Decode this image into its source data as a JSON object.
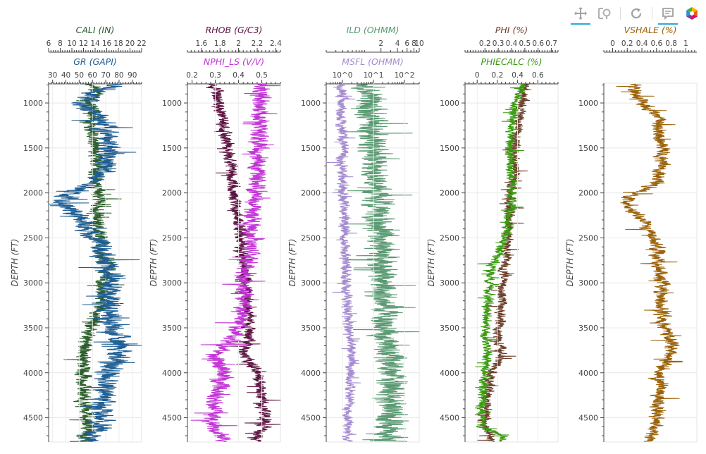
{
  "toolbar": {
    "tools": [
      {
        "name": "pan-tool",
        "active": true
      },
      {
        "name": "box-zoom-tool",
        "active": false
      },
      {
        "name": "reset-tool",
        "active": false
      },
      {
        "name": "hover-tool",
        "active": true
      },
      {
        "name": "bokeh-logo",
        "active": false
      }
    ]
  },
  "colors": {
    "CALI": "#2c5e2c",
    "GR": "#1f5e93",
    "RHOB": "#5c1340",
    "NPHI_LS": "#c234d6",
    "ILD": "#5a9a72",
    "MSFL": "#a58bd0",
    "PHI": "#6b3f2a",
    "PHIECALC": "#3a9a10",
    "VSHALE": "#9a6108"
  },
  "chart_data": [
    {
      "type": "line",
      "ylabel": "DEPTH (FT)",
      "ylim": [
        780,
        4770
      ],
      "yticks": [
        1000,
        1500,
        2000,
        2500,
        3000,
        3500,
        4000,
        4500
      ],
      "grid": true,
      "series": [
        {
          "name": "CALI (IN)",
          "axis": "top",
          "xlim": [
            6,
            22
          ],
          "ticks": [
            {
              "v": 6,
              "label": "6"
            },
            {
              "v": 8,
              "label": "8"
            },
            {
              "v": 10,
              "label": "10"
            },
            {
              "v": 12,
              "label": "12"
            },
            {
              "v": 14,
              "label": "14"
            },
            {
              "v": 16,
              "label": "16"
            },
            {
              "v": 18,
              "label": "18"
            },
            {
              "v": 20,
              "label": "20"
            },
            {
              "v": 22,
              "label": "22"
            }
          ],
          "baseline": [
            [
              800,
              13.5
            ],
            [
              900,
              15
            ],
            [
              1000,
              12.5
            ],
            [
              1100,
              13.5
            ],
            [
              1300,
              13
            ],
            [
              1500,
              14
            ],
            [
              1700,
              14.5
            ],
            [
              1900,
              14
            ],
            [
              2100,
              15
            ],
            [
              2300,
              14
            ],
            [
              2500,
              15
            ],
            [
              2700,
              14.5
            ],
            [
              2800,
              17
            ],
            [
              3000,
              15
            ],
            [
              3200,
              15.5
            ],
            [
              3500,
              13
            ],
            [
              3800,
              12
            ],
            [
              4000,
              12
            ],
            [
              4300,
              12
            ],
            [
              4500,
              12.5
            ],
            [
              4700,
              12.5
            ]
          ],
          "amp": 1.2,
          "seed": 11
        },
        {
          "name": "GR (GAPI)",
          "axis": "bottom",
          "xlim": [
            27,
            97
          ],
          "ticks": [
            {
              "v": 30,
              "label": "30"
            },
            {
              "v": 40,
              "label": "40"
            },
            {
              "v": 50,
              "label": "50"
            },
            {
              "v": 60,
              "label": "60"
            },
            {
              "v": 70,
              "label": "70"
            },
            {
              "v": 80,
              "label": "80"
            },
            {
              "v": 90,
              "label": "90"
            }
          ],
          "baseline": [
            [
              800,
              80
            ],
            [
              900,
              60
            ],
            [
              1000,
              55
            ],
            [
              1200,
              68
            ],
            [
              1500,
              72
            ],
            [
              1700,
              70
            ],
            [
              1900,
              60
            ],
            [
              2000,
              45
            ],
            [
              2100,
              38
            ],
            [
              2300,
              52
            ],
            [
              2500,
              60
            ],
            [
              2600,
              68
            ],
            [
              2800,
              70
            ],
            [
              3000,
              74
            ],
            [
              3200,
              72
            ],
            [
              3500,
              75
            ],
            [
              3700,
              82
            ],
            [
              3800,
              80
            ],
            [
              4000,
              72
            ],
            [
              4200,
              70
            ],
            [
              4400,
              68
            ],
            [
              4600,
              66
            ],
            [
              4700,
              60
            ]
          ],
          "amp": 8,
          "seed": 23
        }
      ]
    },
    {
      "type": "line",
      "ylabel": "DEPTH (FT)",
      "ylim": [
        780,
        4770
      ],
      "yticks": [
        1000,
        1500,
        2000,
        2500,
        3000,
        3500,
        4000,
        4500
      ],
      "grid": true,
      "series": [
        {
          "name": "RHOB (G/C3)",
          "axis": "top",
          "xlim": [
            1.45,
            2.45
          ],
          "ticks": [
            {
              "v": 1.6,
              "label": "1.6"
            },
            {
              "v": 1.8,
              "label": "1.8"
            },
            {
              "v": 2,
              "label": "2"
            },
            {
              "v": 2.2,
              "label": "2.2"
            },
            {
              "v": 2.4,
              "label": "2.4"
            }
          ],
          "baseline": [
            [
              800,
              1.75
            ],
            [
              1000,
              1.78
            ],
            [
              1300,
              1.85
            ],
            [
              1500,
              1.88
            ],
            [
              1800,
              1.92
            ],
            [
              2000,
              1.95
            ],
            [
              2300,
              2.0
            ],
            [
              2500,
              2.02
            ],
            [
              2800,
              2.05
            ],
            [
              3000,
              2.08
            ],
            [
              3300,
              2.1
            ],
            [
              3600,
              2.12
            ],
            [
              3800,
              2.05
            ],
            [
              4000,
              2.2
            ],
            [
              4300,
              2.25
            ],
            [
              4600,
              2.28
            ],
            [
              4700,
              2.2
            ]
          ],
          "amp": 0.06,
          "seed": 37
        },
        {
          "name": "NPHI_LS (V/V)",
          "axis": "bottom",
          "xlim": [
            0.18,
            0.58
          ],
          "ticks": [
            {
              "v": 0.2,
              "label": "0.2"
            },
            {
              "v": 0.3,
              "label": "0.3"
            },
            {
              "v": 0.4,
              "label": "0.4"
            },
            {
              "v": 0.5,
              "label": "0.5"
            }
          ],
          "baseline": [
            [
              800,
              0.5
            ],
            [
              1000,
              0.5
            ],
            [
              1300,
              0.49
            ],
            [
              1500,
              0.48
            ],
            [
              1800,
              0.48
            ],
            [
              2000,
              0.47
            ],
            [
              2300,
              0.46
            ],
            [
              2500,
              0.45
            ],
            [
              2800,
              0.44
            ],
            [
              3000,
              0.42
            ],
            [
              3300,
              0.42
            ],
            [
              3600,
              0.38
            ],
            [
              3800,
              0.3
            ],
            [
              4000,
              0.34
            ],
            [
              4300,
              0.3
            ],
            [
              4600,
              0.28
            ],
            [
              4700,
              0.33
            ]
          ],
          "amp": 0.035,
          "seed": 41
        }
      ]
    },
    {
      "type": "line",
      "ylabel": "DEPTH (FT)",
      "ylim": [
        780,
        4770
      ],
      "yticks": [
        1000,
        1500,
        2000,
        2500,
        3000,
        3500,
        4000,
        4500
      ],
      "grid": true,
      "series": [
        {
          "name": "ILD (OHMM)",
          "axis": "top",
          "scale": "log",
          "xlim": [
            0.2,
            10
          ],
          "ticks": [
            {
              "v": 2,
              "label": "2"
            },
            {
              "v": 4,
              "label": "4"
            },
            {
              "v": 6,
              "label": "6"
            },
            {
              "v": 8,
              "label": "8"
            },
            {
              "v": 10,
              "label": "10"
            }
          ],
          "minor": [
            0.2,
            0.3,
            0.4,
            0.5,
            0.6,
            0.7,
            0.8,
            0.9,
            1,
            3,
            5,
            7,
            9
          ],
          "baseline": [
            [
              800,
              1.2
            ],
            [
              1000,
              1.3
            ],
            [
              1500,
              1.5
            ],
            [
              2000,
              1.6
            ],
            [
              2300,
              1.8
            ],
            [
              2600,
              2.0
            ],
            [
              2900,
              2.2
            ],
            [
              3200,
              2.6
            ],
            [
              3500,
              2.4
            ],
            [
              3800,
              3.0
            ],
            [
              4000,
              3.2
            ],
            [
              4300,
              2.8
            ],
            [
              4700,
              3.0
            ]
          ],
          "amp": 0.25,
          "logspace": true,
          "seed": 53
        },
        {
          "name": "MSFL (OHMM)",
          "axis": "bottom",
          "scale": "log",
          "xlim": [
            0.3,
            300
          ],
          "ticks": [
            {
              "v": 1,
              "label": "10^0"
            },
            {
              "v": 10,
              "label": "10^1"
            },
            {
              "v": 100,
              "label": "10^2"
            }
          ],
          "minor": [
            0.3,
            0.4,
            0.5,
            0.6,
            0.7,
            0.8,
            0.9,
            2,
            3,
            4,
            5,
            6,
            7,
            8,
            9,
            20,
            30,
            40,
            50,
            60,
            70,
            80,
            90,
            200,
            300
          ],
          "baseline": [
            [
              800,
              1.0
            ],
            [
              1000,
              0.9
            ],
            [
              1500,
              1.0
            ],
            [
              2000,
              1.1
            ],
            [
              2500,
              1.2
            ],
            [
              3000,
              1.3
            ],
            [
              3500,
              1.5
            ],
            [
              3800,
              2.2
            ],
            [
              4000,
              1.8
            ],
            [
              4400,
              1.6
            ],
            [
              4700,
              1.5
            ]
          ],
          "amp": 0.15,
          "logspace": true,
          "seed": 67
        }
      ]
    },
    {
      "type": "line",
      "ylabel": "DEPTH (FT)",
      "ylim": [
        780,
        4770
      ],
      "yticks": [
        1000,
        1500,
        2000,
        2500,
        3000,
        3500,
        4000,
        4500
      ],
      "grid": true,
      "series": [
        {
          "name": "PHI (%)",
          "axis": "top",
          "xlim": [
            0.05,
            0.75
          ],
          "ticks": [
            {
              "v": 0.2,
              "label": "0.2"
            },
            {
              "v": 0.3,
              "label": "0.3"
            },
            {
              "v": 0.4,
              "label": "0.4"
            },
            {
              "v": 0.5,
              "label": "0.5"
            },
            {
              "v": 0.6,
              "label": "0.6"
            },
            {
              "v": 0.7,
              "label": "0.7"
            }
          ],
          "baseline": [
            [
              800,
              0.5
            ],
            [
              1000,
              0.48
            ],
            [
              1300,
              0.44
            ],
            [
              1500,
              0.42
            ],
            [
              1800,
              0.42
            ],
            [
              2000,
              0.4
            ],
            [
              2300,
              0.38
            ],
            [
              2500,
              0.37
            ],
            [
              2800,
              0.35
            ],
            [
              3000,
              0.33
            ],
            [
              3300,
              0.32
            ],
            [
              3600,
              0.3
            ],
            [
              3800,
              0.33
            ],
            [
              4000,
              0.25
            ],
            [
              4300,
              0.22
            ],
            [
              4600,
              0.2
            ],
            [
              4700,
              0.25
            ]
          ],
          "amp": 0.035,
          "seed": 71
        },
        {
          "name": "PHIECALC (%)",
          "axis": "bottom",
          "xlim": [
            -0.12,
            0.8
          ],
          "ticks": [
            {
              "v": 0,
              "label": "0"
            },
            {
              "v": 0.2,
              "label": "0.2"
            },
            {
              "v": 0.4,
              "label": "0.4"
            },
            {
              "v": 0.6,
              "label": "0.6"
            }
          ],
          "baseline": [
            [
              800,
              0.45
            ],
            [
              1000,
              0.38
            ],
            [
              1300,
              0.34
            ],
            [
              1500,
              0.32
            ],
            [
              1800,
              0.33
            ],
            [
              2000,
              0.35
            ],
            [
              2300,
              0.32
            ],
            [
              2500,
              0.28
            ],
            [
              2800,
              0.15
            ],
            [
              3000,
              0.12
            ],
            [
              3300,
              0.1
            ],
            [
              3600,
              0.08
            ],
            [
              3800,
              0.1
            ],
            [
              4000,
              0.08
            ],
            [
              4300,
              0.05
            ],
            [
              4600,
              0.04
            ],
            [
              4700,
              0.25
            ]
          ],
          "amp": 0.045,
          "seed": 83
        }
      ]
    },
    {
      "type": "line",
      "ylabel": "DEPTH (FT)",
      "ylim": [
        780,
        4770
      ],
      "yticks": [
        1000,
        1500,
        2000,
        2500,
        3000,
        3500,
        4000,
        4500
      ],
      "grid": true,
      "series": [
        {
          "name": "VSHALE (%)",
          "axis": "top",
          "xlim": [
            -0.12,
            1.15
          ],
          "ticks": [
            {
              "v": 0,
              "label": "0"
            },
            {
              "v": 0.2,
              "label": "0.2"
            },
            {
              "v": 0.4,
              "label": "0.4"
            },
            {
              "v": 0.6,
              "label": "0.6"
            },
            {
              "v": 0.8,
              "label": "0.8"
            },
            {
              "v": 1,
              "label": "1"
            }
          ],
          "baseline": [
            [
              800,
              0.35
            ],
            [
              900,
              0.3
            ],
            [
              1000,
              0.42
            ],
            [
              1200,
              0.62
            ],
            [
              1500,
              0.68
            ],
            [
              1700,
              0.66
            ],
            [
              1900,
              0.6
            ],
            [
              2000,
              0.3
            ],
            [
              2100,
              0.15
            ],
            [
              2300,
              0.4
            ],
            [
              2500,
              0.55
            ],
            [
              2600,
              0.62
            ],
            [
              2800,
              0.6
            ],
            [
              3000,
              0.68
            ],
            [
              3200,
              0.66
            ],
            [
              3500,
              0.7
            ],
            [
              3700,
              0.82
            ],
            [
              3800,
              0.78
            ],
            [
              4000,
              0.65
            ],
            [
              4200,
              0.66
            ],
            [
              4400,
              0.62
            ],
            [
              4600,
              0.6
            ],
            [
              4700,
              0.5
            ]
          ],
          "amp": 0.09,
          "seed": 97
        }
      ]
    }
  ]
}
